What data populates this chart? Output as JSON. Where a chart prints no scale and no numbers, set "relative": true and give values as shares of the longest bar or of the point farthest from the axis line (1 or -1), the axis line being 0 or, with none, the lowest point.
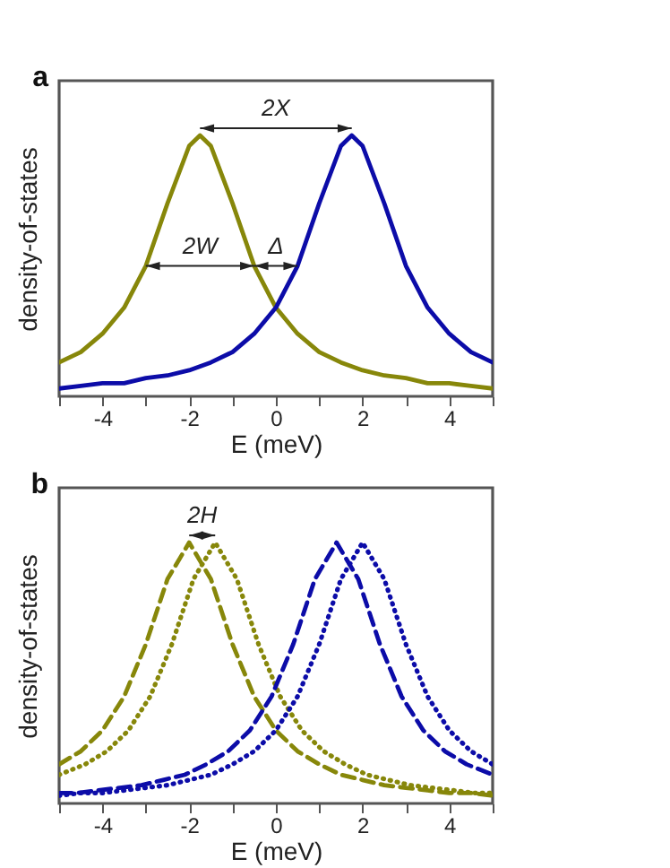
{
  "chart_data": [
    {
      "type": "line",
      "relative": true,
      "xlabel": "E (meV)",
      "ylabel": "density-of-states",
      "xlim": [
        -5,
        5
      ],
      "xticks": [
        {
          "value": -5,
          "label": null
        },
        -4,
        {
          "value": -3,
          "label": null
        },
        -2,
        {
          "value": -1,
          "label": null
        },
        0,
        {
          "value": 1,
          "label": null
        },
        2,
        {
          "value": 3,
          "label": null
        },
        4,
        {
          "value": 5,
          "label": null
        }
      ],
      "annotations": [
        "a",
        "2X",
        "2W",
        "Δ"
      ],
      "series": [
        {
          "color": "#87870a",
          "line_style": "solid",
          "x": [
            -5,
            -4.5,
            -4,
            -3.5,
            -3,
            -2.5,
            -2,
            -1.75,
            -1.5,
            -1,
            -0.5,
            0,
            0.5,
            1,
            1.5,
            2,
            2.5,
            3,
            3.5,
            4,
            4.5,
            5
          ],
          "values": [
            0.13,
            0.17,
            0.24,
            0.34,
            0.5,
            0.74,
            0.96,
            1,
            0.96,
            0.74,
            0.5,
            0.34,
            0.24,
            0.17,
            0.13,
            0.1,
            0.08,
            0.07,
            0.05,
            0.05,
            0.04,
            0.03
          ]
        },
        {
          "color": "#0c0ca8",
          "line_style": "solid",
          "x": [
            -5,
            -4.5,
            -4,
            -3.5,
            -3,
            -2.5,
            -2,
            -1.5,
            -1,
            -0.5,
            0,
            0.5,
            1,
            1.5,
            1.75,
            2,
            2.5,
            3,
            3.5,
            4,
            4.5,
            5
          ],
          "values": [
            0.03,
            0.04,
            0.05,
            0.05,
            0.07,
            0.08,
            0.1,
            0.13,
            0.17,
            0.24,
            0.34,
            0.5,
            0.74,
            0.96,
            1,
            0.96,
            0.74,
            0.5,
            0.34,
            0.24,
            0.17,
            0.13
          ]
        }
      ]
    },
    {
      "type": "line",
      "relative": true,
      "xlabel": "E (meV)",
      "ylabel": "density-of-states",
      "xlim": [
        -5,
        5
      ],
      "xticks": [
        {
          "value": -5,
          "label": null
        },
        -4,
        {
          "value": -3,
          "label": null
        },
        -2,
        {
          "value": -1,
          "label": null
        },
        0,
        {
          "value": 1,
          "label": null
        },
        2,
        {
          "value": 3,
          "label": null
        },
        4,
        {
          "value": 5,
          "label": null
        }
      ],
      "annotations": [
        "b",
        "2H"
      ],
      "series": [
        {
          "color": "#87870a",
          "line_style": "dashed",
          "x": [
            -5,
            -4.5,
            -4,
            -3.5,
            -3,
            -2.5,
            -2,
            -1.5,
            -1,
            -0.5,
            0,
            0.5,
            1,
            1.5,
            2,
            2.5,
            3,
            3.5,
            4,
            4.5,
            5
          ],
          "values": [
            0.15,
            0.2,
            0.28,
            0.41,
            0.61,
            0.86,
            1,
            0.86,
            0.61,
            0.41,
            0.28,
            0.2,
            0.15,
            0.11,
            0.09,
            0.07,
            0.06,
            0.05,
            0.04,
            0.04,
            0.03
          ]
        },
        {
          "color": "#87870a",
          "line_style": "dotted",
          "x": [
            -5,
            -4.4,
            -3.9,
            -3.4,
            -2.9,
            -2.4,
            -1.9,
            -1.4,
            -0.9,
            -0.4,
            0.1,
            0.6,
            1.1,
            1.6,
            2.1,
            2.6,
            3.1,
            3.6,
            4.1,
            4.6,
            5
          ],
          "values": [
            0.11,
            0.15,
            0.2,
            0.28,
            0.41,
            0.61,
            0.86,
            1,
            0.86,
            0.61,
            0.41,
            0.28,
            0.2,
            0.15,
            0.11,
            0.09,
            0.07,
            0.06,
            0.05,
            0.04,
            0.04
          ]
        },
        {
          "color": "#0c0ca8",
          "line_style": "dashed",
          "x": [
            -5,
            -4.6,
            -4.1,
            -3.6,
            -3.1,
            -2.6,
            -2.1,
            -1.6,
            -1.1,
            -0.6,
            -0.1,
            0.4,
            0.9,
            1.4,
            1.9,
            2.4,
            2.9,
            3.4,
            3.9,
            4.4,
            5
          ],
          "values": [
            0.04,
            0.04,
            0.05,
            0.06,
            0.07,
            0.09,
            0.11,
            0.15,
            0.2,
            0.28,
            0.41,
            0.61,
            0.86,
            1,
            0.86,
            0.61,
            0.41,
            0.28,
            0.2,
            0.15,
            0.11
          ]
        },
        {
          "color": "#0c0ca8",
          "line_style": "dotted",
          "x": [
            -5,
            -4.5,
            -4,
            -3.5,
            -3,
            -2.5,
            -2,
            -1.5,
            -1,
            -0.5,
            0,
            0.5,
            1,
            1.5,
            2,
            2.5,
            3,
            3.5,
            4,
            4.5,
            5
          ],
          "values": [
            0.03,
            0.04,
            0.04,
            0.05,
            0.06,
            0.07,
            0.09,
            0.11,
            0.15,
            0.2,
            0.28,
            0.41,
            0.61,
            0.86,
            1,
            0.86,
            0.61,
            0.41,
            0.28,
            0.2,
            0.15
          ]
        }
      ]
    }
  ]
}
